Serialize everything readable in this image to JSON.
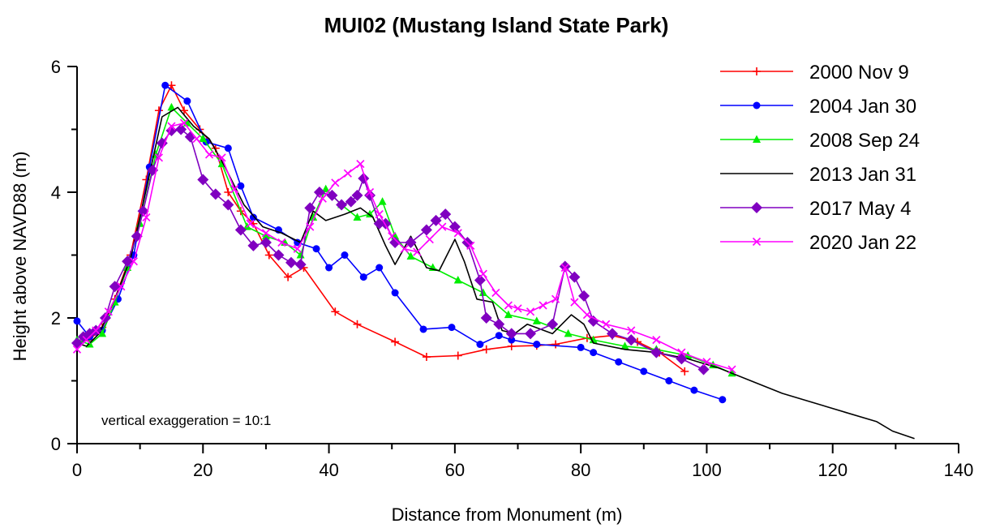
{
  "chart_data": {
    "type": "line",
    "title": "MUI02 (Mustang Island State Park)",
    "xlabel": "Distance from Monument (m)",
    "ylabel": "Height above NAVD88 (m)",
    "xlim": [
      0,
      140
    ],
    "ylim": [
      0,
      6
    ],
    "xticks": [
      0,
      20,
      40,
      60,
      80,
      100,
      120,
      140
    ],
    "yticks": [
      0,
      2,
      4,
      6
    ],
    "grid": false,
    "legend_position": "top-right",
    "annotation": "vertical exaggeration = 10:1",
    "series": [
      {
        "name": "2000 Nov 9",
        "color": "#ff0000",
        "marker": "plus",
        "x": [
          0,
          2,
          4,
          6,
          8.5,
          11,
          13,
          15,
          17,
          19.5,
          22,
          24,
          26,
          28,
          30.5,
          33.5,
          36,
          41,
          44.5,
          50.5,
          55.5,
          60.5,
          65,
          69,
          73,
          76,
          81,
          85,
          89,
          92.5,
          96.5
        ],
        "y": [
          1.6,
          1.65,
          1.85,
          2.3,
          3.0,
          4.2,
          5.3,
          5.7,
          5.3,
          5.0,
          4.7,
          4.0,
          3.7,
          3.5,
          3.0,
          2.65,
          2.8,
          2.1,
          1.9,
          1.62,
          1.38,
          1.4,
          1.5,
          1.55,
          1.56,
          1.58,
          1.68,
          1.72,
          1.62,
          1.45,
          1.15
        ]
      },
      {
        "name": "2004 Jan 30",
        "color": "#0000ff",
        "marker": "circle",
        "x": [
          0,
          2,
          4,
          6.5,
          9,
          11.5,
          14,
          17.5,
          20.5,
          24,
          26,
          28,
          32,
          35,
          38,
          40,
          42.5,
          45.5,
          48,
          50.5,
          55,
          59.5,
          64,
          67,
          69,
          73,
          80,
          82,
          86,
          90,
          94,
          98,
          102.5
        ],
        "y": [
          1.95,
          1.7,
          1.8,
          2.3,
          3.0,
          4.4,
          5.7,
          5.45,
          4.8,
          4.7,
          4.1,
          3.6,
          3.4,
          3.2,
          3.1,
          2.8,
          3.0,
          2.65,
          2.8,
          2.4,
          1.82,
          1.85,
          1.58,
          1.72,
          1.65,
          1.58,
          1.53,
          1.45,
          1.3,
          1.15,
          1.0,
          0.85,
          0.7
        ]
      },
      {
        "name": "2008 Sep 24",
        "color": "#00ee00",
        "marker": "triangle",
        "x": [
          0,
          2,
          4,
          6,
          8,
          10,
          12.5,
          15,
          17.5,
          20,
          23,
          27,
          30,
          33,
          35.5,
          37.5,
          39.5,
          42,
          44.5,
          46.5,
          48.5,
          50.5,
          53,
          56.5,
          60.5,
          64.5,
          68.5,
          73,
          78,
          82,
          87,
          92,
          97,
          101,
          104
        ],
        "y": [
          1.65,
          1.58,
          1.75,
          2.25,
          2.8,
          3.5,
          4.6,
          5.35,
          5.1,
          4.85,
          4.45,
          3.45,
          3.3,
          3.2,
          3.0,
          3.6,
          4.05,
          3.8,
          3.6,
          3.65,
          3.85,
          3.3,
          2.98,
          2.8,
          2.6,
          2.4,
          2.05,
          1.95,
          1.75,
          1.65,
          1.55,
          1.5,
          1.4,
          1.25,
          1.12
        ]
      },
      {
        "name": "2013 Jan 31",
        "color": "#000000",
        "marker": "none",
        "x": [
          0,
          1.5,
          3.5,
          6,
          8.5,
          11,
          13.5,
          16,
          18.5,
          21,
          23.5,
          26.5,
          29.5,
          32.5,
          35.5,
          37.5,
          39.5,
          42.5,
          45,
          47,
          49,
          50.5,
          53,
          55.5,
          57.5,
          60,
          61.5,
          63.5,
          66,
          67.5,
          69.5,
          71.5,
          75.5,
          78.5,
          80.5,
          82,
          87,
          92,
          97,
          102,
          107,
          112,
          117,
          122,
          127,
          129.5,
          133
        ],
        "y": [
          1.6,
          1.55,
          1.75,
          2.3,
          2.95,
          4.05,
          5.2,
          5.35,
          5.05,
          4.85,
          4.4,
          3.8,
          3.45,
          3.35,
          3.2,
          3.7,
          3.55,
          3.65,
          3.75,
          3.6,
          3.15,
          2.85,
          3.3,
          2.8,
          2.75,
          3.25,
          2.9,
          2.3,
          2.25,
          1.8,
          1.75,
          1.9,
          1.75,
          2.05,
          1.9,
          1.6,
          1.5,
          1.45,
          1.35,
          1.2,
          1.0,
          0.8,
          0.65,
          0.5,
          0.35,
          0.2,
          0.08
        ]
      },
      {
        "name": "2017 May 4",
        "color": "#8000c0",
        "marker": "diamond",
        "x": [
          0,
          1,
          2,
          3,
          4.5,
          6,
          8,
          9.5,
          10.5,
          12,
          13.5,
          15,
          16.5,
          18,
          20,
          22,
          24,
          26,
          28,
          30,
          32,
          34,
          35.5,
          37,
          38.5,
          40.5,
          42,
          43.5,
          44.5,
          45.5,
          46.5,
          48,
          49,
          50.5,
          53,
          55.5,
          57,
          58.5,
          60,
          62,
          64,
          65,
          67,
          69,
          72,
          75.5,
          77.5,
          79,
          80.5,
          82,
          85,
          88,
          92,
          96,
          99.5
        ],
        "y": [
          1.6,
          1.7,
          1.75,
          1.8,
          2.0,
          2.5,
          2.9,
          3.3,
          3.7,
          4.35,
          4.78,
          4.98,
          5.0,
          4.88,
          4.2,
          3.97,
          3.8,
          3.4,
          3.15,
          3.2,
          3.0,
          2.88,
          2.85,
          3.75,
          4.0,
          3.95,
          3.8,
          3.85,
          3.95,
          4.22,
          3.95,
          3.5,
          3.5,
          3.2,
          3.2,
          3.4,
          3.55,
          3.65,
          3.45,
          3.2,
          2.6,
          2.0,
          1.9,
          1.75,
          1.75,
          1.9,
          2.82,
          2.65,
          2.35,
          1.95,
          1.75,
          1.65,
          1.45,
          1.35,
          1.18
        ]
      },
      {
        "name": "2020 Jan 22",
        "color": "#ff00ff",
        "marker": "x",
        "x": [
          0,
          1.5,
          3,
          5,
          7,
          9,
          11,
          13,
          15,
          17,
          19,
          21,
          23,
          25,
          27.5,
          30,
          32.5,
          35,
          37,
          39,
          41,
          43,
          45,
          46.5,
          48,
          50,
          52,
          54,
          56,
          58,
          60.5,
          62.5,
          64.5,
          66.5,
          68.5,
          70,
          72,
          74,
          76,
          77.5,
          79,
          81,
          84,
          88,
          92,
          96,
          100,
          104
        ],
        "y": [
          1.5,
          1.65,
          1.8,
          2.1,
          2.5,
          2.9,
          3.6,
          4.55,
          5.05,
          5.1,
          4.85,
          4.6,
          4.55,
          4.05,
          3.5,
          3.35,
          3.2,
          3.1,
          3.45,
          3.9,
          4.15,
          4.3,
          4.45,
          4.0,
          3.65,
          3.3,
          3.1,
          3.05,
          3.25,
          3.45,
          3.35,
          3.15,
          2.7,
          2.4,
          2.2,
          2.15,
          2.1,
          2.2,
          2.3,
          2.8,
          2.25,
          2.05,
          1.9,
          1.8,
          1.65,
          1.45,
          1.3,
          1.18
        ]
      }
    ]
  }
}
